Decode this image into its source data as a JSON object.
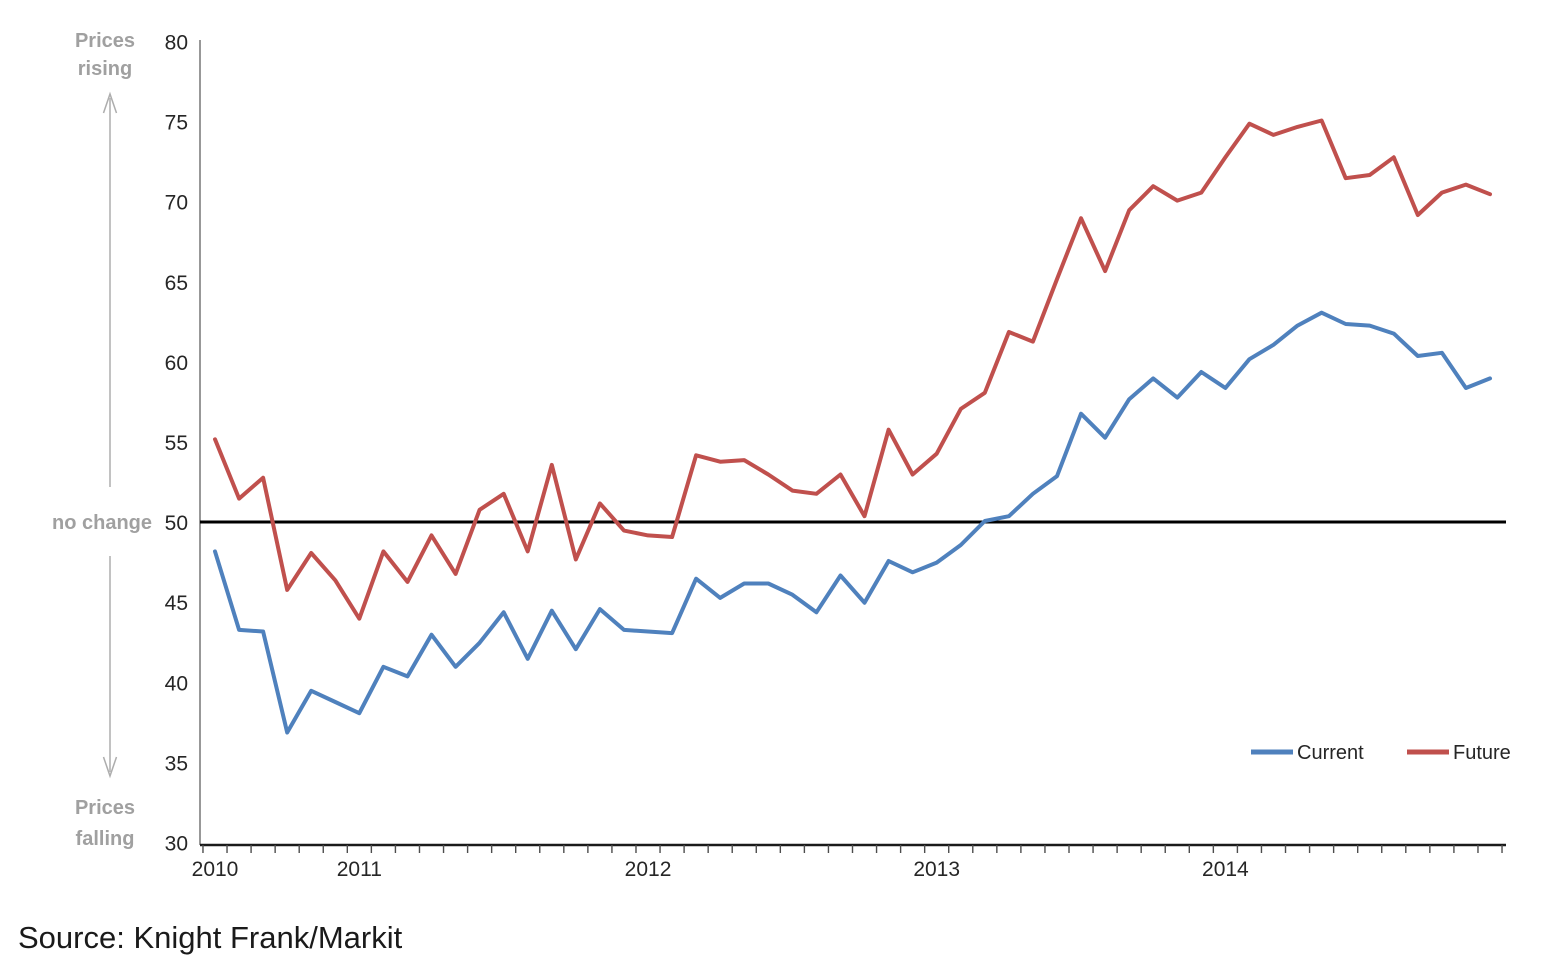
{
  "chart_data": {
    "type": "line",
    "title": "",
    "xlabel": "",
    "ylabel": "",
    "ylim": [
      30,
      80
    ],
    "yticks": [
      80,
      75,
      70,
      65,
      60,
      55,
      50,
      45,
      40,
      35,
      30
    ],
    "grid": false,
    "legend_position": "bottom-right",
    "reference_line": {
      "value": 50,
      "label": "no change"
    },
    "annotations": {
      "rising_line1": "Prices",
      "rising_line2": "rising",
      "no_change": "no change",
      "falling_line1": "Prices",
      "falling_line2": "falling"
    },
    "categories": [
      "Jul 2010",
      "Aug 2010",
      "Sep 2010",
      "Oct 2010",
      "Nov 2010",
      "Dec 2010",
      "Jan 2011",
      "Feb 2011",
      "Mar 2011",
      "Apr 2011",
      "May 2011",
      "Jun 2011",
      "Jul 2011",
      "Aug 2011",
      "Sep 2011",
      "Oct 2011",
      "Nov 2011",
      "Dec 2011",
      "Jan 2012",
      "Feb 2012",
      "Mar 2012",
      "Apr 2012",
      "May 2012",
      "Jun 2012",
      "Jul 2012",
      "Aug 2012",
      "Sep 2012",
      "Oct 2012",
      "Nov 2012",
      "Dec 2012",
      "Jan 2013",
      "Feb 2013",
      "Mar 2013",
      "Apr 2013",
      "May 2013",
      "Jun 2013",
      "Jul 2013",
      "Aug 2013",
      "Sep 2013",
      "Oct 2013",
      "Nov 2013",
      "Dec 2013",
      "Jan 2014",
      "Feb 2014",
      "Mar 2014",
      "Apr 2014",
      "May 2014",
      "Jun 2014",
      "Jul 2014",
      "Aug 2014",
      "Sep 2014",
      "Oct 2014",
      "Nov 2014",
      "Dec 2014"
    ],
    "year_labels": [
      {
        "label": "2010",
        "index": 0
      },
      {
        "label": "2011",
        "index": 6
      },
      {
        "label": "2012",
        "index": 18
      },
      {
        "label": "2013",
        "index": 30
      },
      {
        "label": "2014",
        "index": 42
      }
    ],
    "series": [
      {
        "name": "Current",
        "color": "#4F81BD",
        "values": [
          48.2,
          43.3,
          43.2,
          36.9,
          39.5,
          38.8,
          38.1,
          41.0,
          40.4,
          43.0,
          41.0,
          42.5,
          44.4,
          41.5,
          44.5,
          42.1,
          44.6,
          43.3,
          43.2,
          43.1,
          46.5,
          45.3,
          46.2,
          46.2,
          45.5,
          44.4,
          46.7,
          45.0,
          47.6,
          46.9,
          47.5,
          48.6,
          50.1,
          50.4,
          51.8,
          52.9,
          56.8,
          55.3,
          57.7,
          59.0,
          57.8,
          59.4,
          58.4,
          60.2,
          61.1,
          62.3,
          63.1,
          62.4,
          62.3,
          61.8,
          60.4,
          60.6,
          58.4,
          59.0
        ]
      },
      {
        "name": "Future",
        "color": "#C0504D",
        "values": [
          55.2,
          51.5,
          52.8,
          45.8,
          48.1,
          46.4,
          44.0,
          48.2,
          46.3,
          49.2,
          46.8,
          50.8,
          51.8,
          48.2,
          53.6,
          47.7,
          51.2,
          49.5,
          49.2,
          49.1,
          54.2,
          53.8,
          53.9,
          53.0,
          52.0,
          51.8,
          53.0,
          50.4,
          55.8,
          53.0,
          54.3,
          57.1,
          58.1,
          61.9,
          61.3,
          65.2,
          69.0,
          65.7,
          69.5,
          71.0,
          70.1,
          70.6,
          72.8,
          74.9,
          74.2,
          74.7,
          75.1,
          71.5,
          71.7,
          72.8,
          69.2,
          70.6,
          71.1,
          70.5
        ]
      }
    ]
  },
  "source": {
    "text": "Source: Knight Frank/Markit"
  }
}
